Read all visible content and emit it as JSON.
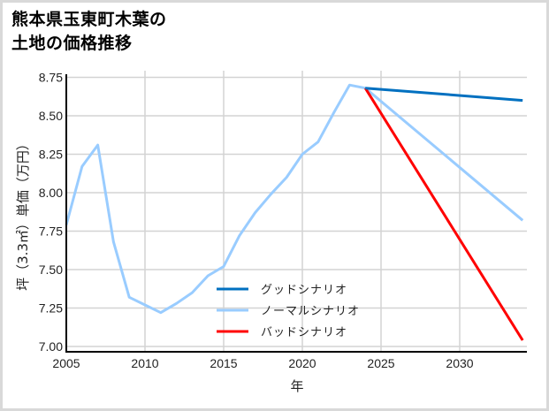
{
  "title_line1": "熊本県玉東町木葉の",
  "title_line2": "土地の価格推移",
  "chart_data": {
    "type": "line",
    "title": "熊本県玉東町木葉の土地の価格推移",
    "xlabel": "年",
    "ylabel": "坪（3.3㎡）単価（万円）",
    "xlim": [
      2005,
      2034
    ],
    "ylim": [
      6.97,
      8.77
    ],
    "xticks": [
      2005,
      2010,
      2015,
      2020,
      2025,
      2030
    ],
    "yticks": [
      7.0,
      7.25,
      7.5,
      7.75,
      8.0,
      8.25,
      8.5,
      8.75
    ],
    "ytick_labels": [
      "7.00",
      "7.25",
      "7.50",
      "7.75",
      "8.00",
      "8.25",
      "8.50",
      "8.75"
    ],
    "grid": true,
    "legend_position": "lower center",
    "series": [
      {
        "name": "グッドシナリオ",
        "color": "#0070C0",
        "x": [
          2024,
          2034
        ],
        "values": [
          8.68,
          8.6
        ]
      },
      {
        "name": "ノーマルシナリオ",
        "color": "#99CCFF",
        "x": [
          2005,
          2006,
          2007,
          2008,
          2009,
          2010,
          2011,
          2012,
          2013,
          2014,
          2015,
          2016,
          2017,
          2018,
          2019,
          2020,
          2021,
          2022,
          2023,
          2024,
          2034
        ],
        "values": [
          7.79,
          8.17,
          8.31,
          7.68,
          7.32,
          7.27,
          7.22,
          7.28,
          7.35,
          7.46,
          7.52,
          7.72,
          7.87,
          7.99,
          8.1,
          8.25,
          8.33,
          8.52,
          8.7,
          8.68,
          7.82
        ]
      },
      {
        "name": "バッドシナリオ",
        "color": "#FF0000",
        "x": [
          2024,
          2034
        ],
        "values": [
          8.68,
          7.04
        ]
      }
    ]
  }
}
